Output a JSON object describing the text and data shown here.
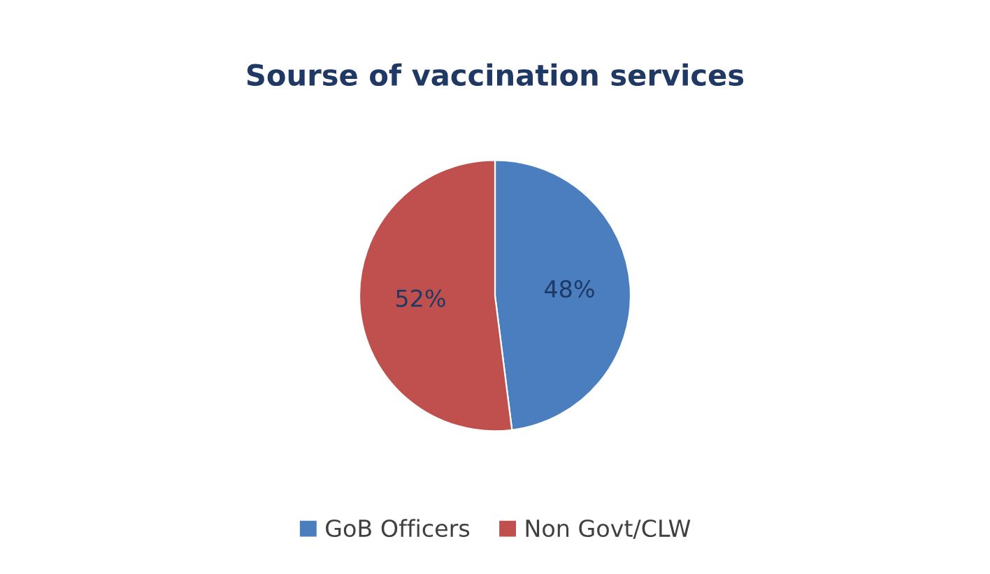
{
  "chart_data": {
    "type": "pie",
    "title": "Sourse of vaccination services",
    "categories": [
      "GoB Officers",
      "Non Govt/CLW"
    ],
    "values": [
      48,
      52
    ],
    "value_labels": [
      "48%",
      "52%"
    ],
    "colors": [
      "#4a7ebf",
      "#c0504d"
    ],
    "legend": "bottom"
  }
}
